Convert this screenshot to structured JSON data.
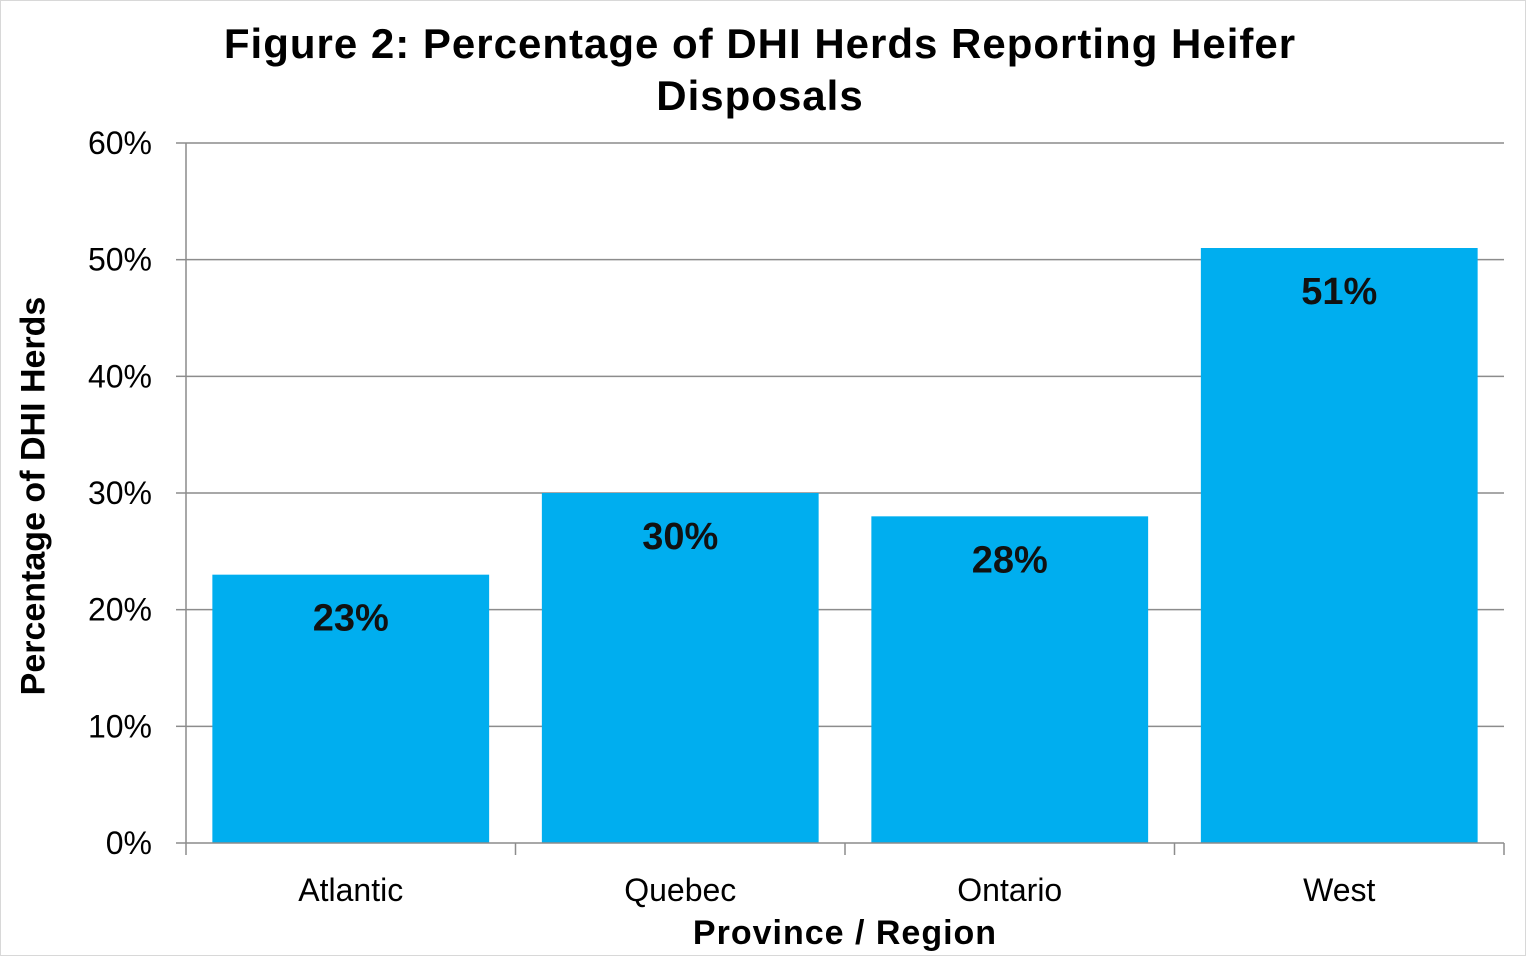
{
  "chart_data": {
    "type": "bar",
    "title": "Figure 2: Percentage of DHI Herds Reporting Heifer Disposals",
    "xlabel": "Province / Region",
    "ylabel": "Percentage of DHI Herds",
    "categories": [
      "Atlantic",
      "Quebec",
      "Ontario",
      "West"
    ],
    "values": [
      23,
      30,
      28,
      51
    ],
    "data_labels": [
      "23%",
      "30%",
      "28%",
      "51%"
    ],
    "ylim": [
      0,
      60
    ],
    "yticks": [
      0,
      10,
      20,
      30,
      40,
      50,
      60
    ],
    "ytick_labels": [
      "0%",
      "10%",
      "20%",
      "30%",
      "40%",
      "50%",
      "60%"
    ],
    "grid": true,
    "legend": "none",
    "bar_color": "#00AEEF"
  }
}
